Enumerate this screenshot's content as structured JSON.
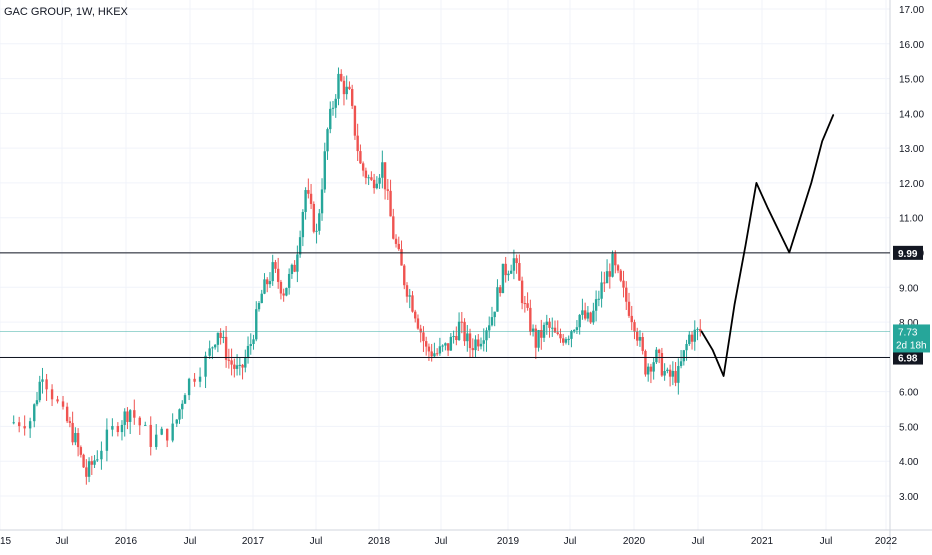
{
  "header": {
    "title": "GAC GROUP, 1W, HKEX"
  },
  "colors": {
    "up": "#26a69a",
    "down": "#ef5350",
    "grid": "#f0f3fa",
    "axis_text": "#131722",
    "hline": "#131722",
    "price_line": "#26a69a",
    "drawing": "#000000"
  },
  "chart_data": {
    "type": "candlestick",
    "title": "GAC GROUP, 1W, HKEX",
    "ylim": [
      2.5,
      17.2
    ],
    "y_ticks": [
      "3.00",
      "4.00",
      "5.00",
      "6.00",
      "7.00",
      "8.00",
      "9.00",
      "10.00",
      "11.00",
      "12.00",
      "13.00",
      "14.00",
      "15.00",
      "16.00",
      "17.00"
    ],
    "x_ticks": [
      "15",
      "Jul",
      "2016",
      "Jul",
      "2017",
      "Jul",
      "2018",
      "Jul",
      "2019",
      "Jul",
      "2020",
      "Jul",
      "2021",
      "Jul",
      "2022"
    ],
    "grid": true,
    "close_path": [
      [
        "2015-05",
        5.1
      ],
      [
        "2015-07",
        5.2
      ],
      [
        "2015-08",
        6.6
      ],
      [
        "2015-10",
        5.3
      ],
      [
        "2015-11",
        4.6
      ],
      [
        "2015-12",
        3.6
      ],
      [
        "2016-01",
        4.2
      ],
      [
        "2016-03",
        5.1
      ],
      [
        "2016-04",
        5.5
      ],
      [
        "2016-06",
        4.6
      ],
      [
        "2016-08",
        4.9
      ],
      [
        "2016-09",
        6.1
      ],
      [
        "2016-11",
        6.9
      ],
      [
        "2016-12",
        7.8
      ],
      [
        "2017-01",
        6.9
      ],
      [
        "2017-02",
        6.5
      ],
      [
        "2017-03",
        7.4
      ],
      [
        "2017-04",
        8.8
      ],
      [
        "2017-05",
        9.5
      ],
      [
        "2017-06",
        8.9
      ],
      [
        "2017-07",
        9.6
      ],
      [
        "2017-08",
        11.8
      ],
      [
        "2017-09",
        10.5
      ],
      [
        "2017-10",
        13.5
      ],
      [
        "2017-11",
        15.0
      ],
      [
        "2017-12",
        14.5
      ],
      [
        "2018-01",
        12.5
      ],
      [
        "2018-02",
        12.0
      ],
      [
        "2018-03",
        12.5
      ],
      [
        "2018-04",
        10.5
      ],
      [
        "2018-05",
        9.2
      ],
      [
        "2018-06",
        8.3
      ],
      [
        "2018-07",
        7.2
      ],
      [
        "2018-08",
        7.1
      ],
      [
        "2018-09",
        7.3
      ],
      [
        "2018-10",
        7.9
      ],
      [
        "2018-11",
        7.3
      ],
      [
        "2018-12",
        7.6
      ],
      [
        "2019-01",
        8.2
      ],
      [
        "2019-02",
        9.4
      ],
      [
        "2019-03",
        9.8
      ],
      [
        "2019-04",
        8.4
      ],
      [
        "2019-05",
        7.4
      ],
      [
        "2019-06",
        7.9
      ],
      [
        "2019-07",
        7.5
      ],
      [
        "2019-08",
        7.7
      ],
      [
        "2019-09",
        8.2
      ],
      [
        "2019-10",
        8.0
      ],
      [
        "2019-11",
        9.0
      ],
      [
        "2019-12",
        9.7
      ],
      [
        "2020-01",
        8.8
      ],
      [
        "2020-02",
        8.0
      ],
      [
        "2020-03",
        6.7
      ],
      [
        "2020-04",
        7.0
      ],
      [
        "2020-05",
        6.4
      ],
      [
        "2020-06",
        6.5
      ],
      [
        "2020-07",
        7.6
      ],
      [
        "2020-08",
        7.73
      ]
    ],
    "horizontal_lines": [
      {
        "price": 9.99,
        "label": "9.99"
      },
      {
        "price": 6.98,
        "label": "6.98"
      }
    ],
    "last_price": {
      "value": 7.73,
      "label": "7.73",
      "countdown": "2d 18h"
    },
    "projection_drawing": [
      [
        "2020-08",
        7.73
      ],
      [
        "2020-09",
        7.2
      ],
      [
        "2020-10",
        6.45
      ],
      [
        "2020-11",
        8.5
      ],
      [
        "2020-12",
        10.2
      ],
      [
        "2021-01",
        12.0
      ],
      [
        "2021-02",
        11.3
      ],
      [
        "2021-04",
        10.0
      ],
      [
        "2021-05",
        11.0
      ],
      [
        "2021-06",
        12.0
      ],
      [
        "2021-07",
        13.2
      ],
      [
        "2021-08",
        13.95
      ]
    ]
  }
}
